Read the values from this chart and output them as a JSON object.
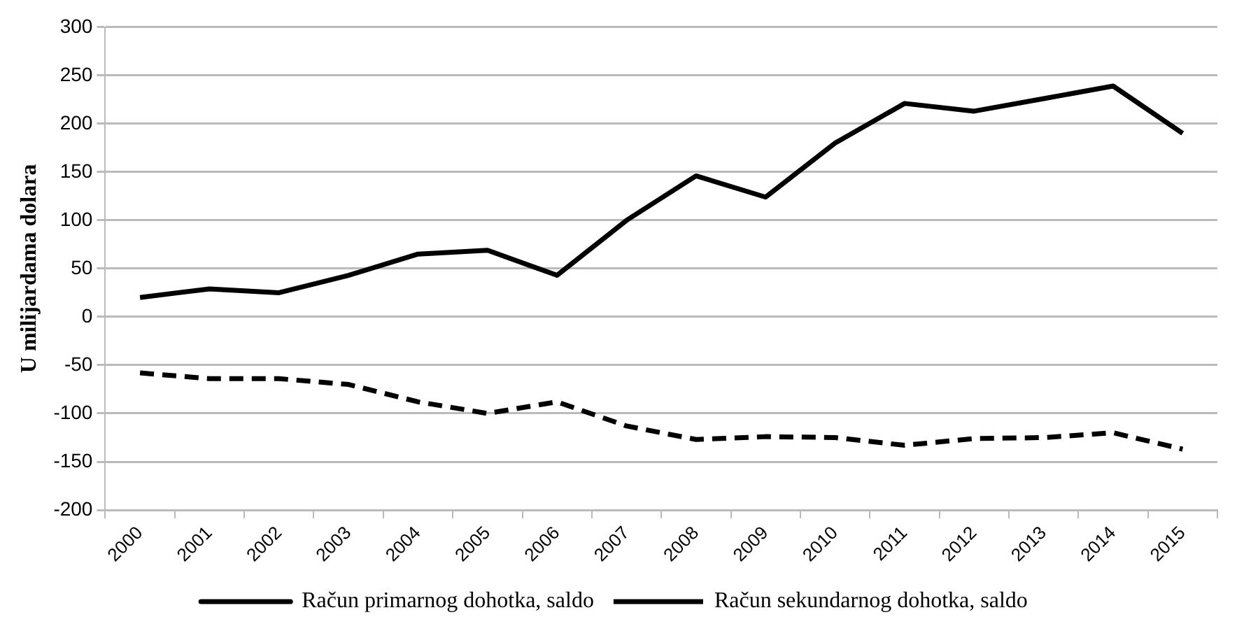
{
  "chart_data": {
    "type": "line",
    "ylabel": "U milijardama dolara",
    "categories": [
      "2000",
      "2001",
      "2002",
      "2003",
      "2004",
      "2005",
      "2006",
      "2007",
      "2008",
      "2009",
      "2010",
      "2011",
      "2012",
      "2013",
      "2014",
      "2015"
    ],
    "series": [
      {
        "name": "Račun primarnog dohotka, saldo",
        "color": "#000000",
        "line_style": "solid",
        "values": [
          20,
          29,
          25,
          43,
          65,
          69,
          43,
          100,
          146,
          124,
          180,
          221,
          213,
          226,
          239,
          190
        ]
      },
      {
        "name": "Račun sekundarnog dohotka, saldo",
        "color": "#000000",
        "line_style": "dashed",
        "values": [
          -58,
          -64,
          -64,
          -70,
          -88,
          -100,
          -88,
          -113,
          -127,
          -124,
          -125,
          -133,
          -126,
          -125,
          -120,
          -137
        ]
      }
    ],
    "ylim": [
      -200,
      300
    ],
    "yticks": [
      -200,
      -150,
      -100,
      -50,
      0,
      50,
      100,
      150,
      200,
      250,
      300
    ],
    "grid": "y",
    "legend": "bottom",
    "marker": "none"
  }
}
